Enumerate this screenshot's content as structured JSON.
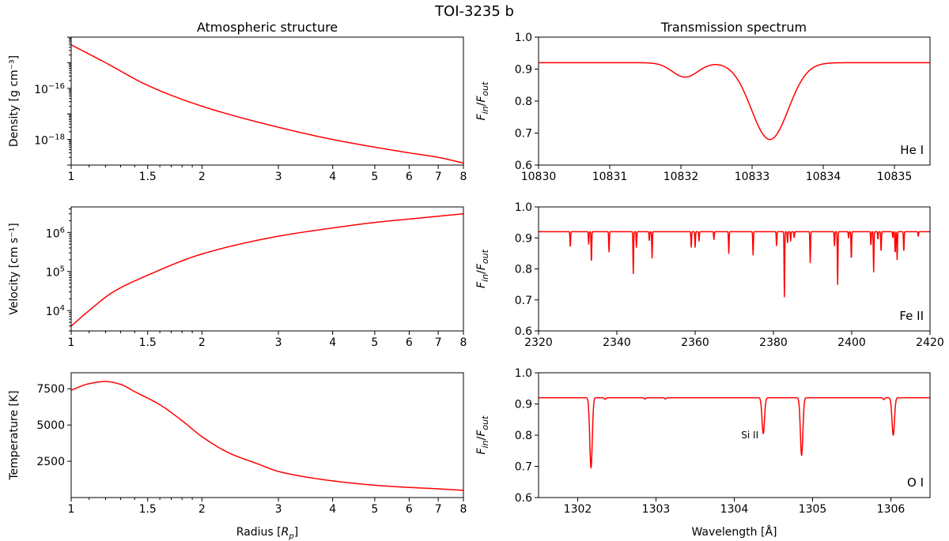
{
  "figure": {
    "title": "TOI-3235 b",
    "left_column_title": "Atmospheric structure",
    "right_column_title": "Transmission spectrum",
    "series_color": "#ff0000"
  },
  "chart_data": [
    {
      "id": "density",
      "type": "line",
      "title": "",
      "xlabel": "",
      "ylabel": "Density [g cm⁻³]",
      "xscale": "log",
      "yscale": "log",
      "xlim": [
        1,
        8
      ],
      "ylim": [
        1e-19,
        1e-14
      ],
      "xticks": [
        1,
        1.5,
        2,
        3,
        4,
        5,
        6,
        7,
        8
      ],
      "xtick_labels": [
        "1",
        "1.5",
        "2",
        "3",
        "4",
        "5",
        "6",
        "7",
        "8"
      ],
      "yticks": [
        1e-16,
        1e-18
      ],
      "ytick_base": "10",
      "ytick_exponents": [
        "−16",
        "−18"
      ],
      "x": [
        1.0,
        1.2,
        1.5,
        2.0,
        3.0,
        4.0,
        5.0,
        6.0,
        7.0,
        8.0
      ],
      "y": [
        5e-15,
        1e-15,
        1.3e-16,
        2e-17,
        3e-18,
        1e-18,
        5e-19,
        3e-19,
        2e-19,
        1.2e-19
      ]
    },
    {
      "id": "velocity",
      "type": "line",
      "title": "",
      "xlabel": "",
      "ylabel": "Velocity [cm s⁻¹]",
      "xscale": "log",
      "yscale": "log",
      "xlim": [
        1,
        8
      ],
      "ylim": [
        3000,
        4500000
      ],
      "xticks": [
        1,
        1.5,
        2,
        3,
        4,
        5,
        6,
        7,
        8
      ],
      "xtick_labels": [
        "1",
        "1.5",
        "2",
        "3",
        "4",
        "5",
        "6",
        "7",
        "8"
      ],
      "yticks": [
        10000,
        100000,
        1000000
      ],
      "ytick_base": "10",
      "ytick_exponents": [
        "4",
        "5",
        "6"
      ],
      "x": [
        1.0,
        1.1,
        1.25,
        1.5,
        2.0,
        3.0,
        4.0,
        5.0,
        6.0,
        7.0,
        8.0
      ],
      "y": [
        4000,
        10000,
        30000,
        80000,
        280000,
        800000,
        1300000,
        1800000,
        2200000,
        2600000,
        3000000
      ]
    },
    {
      "id": "temperature",
      "type": "line",
      "title": "",
      "xlabel": "Radius [Rp]",
      "ylabel": "Temperature [K]",
      "xscale": "log",
      "yscale": "linear",
      "xlim": [
        1,
        8
      ],
      "ylim": [
        0,
        8600
      ],
      "xticks": [
        1,
        1.5,
        2,
        3,
        4,
        5,
        6,
        7,
        8
      ],
      "xtick_labels": [
        "1",
        "1.5",
        "2",
        "3",
        "4",
        "5",
        "6",
        "7",
        "8"
      ],
      "yticks": [
        2500,
        5000,
        7500
      ],
      "ytick_labels": [
        "2500",
        "5000",
        "7500"
      ],
      "x": [
        1.0,
        1.1,
        1.2,
        1.3,
        1.4,
        1.6,
        1.8,
        2.0,
        2.3,
        2.7,
        3.0,
        3.5,
        4.0,
        5.0,
        6.0,
        7.0,
        8.0
      ],
      "y": [
        7400,
        7850,
        8000,
        7800,
        7300,
        6400,
        5300,
        4200,
        3100,
        2300,
        1800,
        1400,
        1150,
        850,
        700,
        600,
        500
      ]
    },
    {
      "id": "he-spectrum",
      "type": "line",
      "title": "",
      "xlabel": "",
      "ylabel": "Fin/Fout",
      "line_label": "He I",
      "xscale": "linear",
      "yscale": "linear",
      "xlim": [
        10830,
        10835.5
      ],
      "ylim": [
        0.6,
        1.0
      ],
      "xticks": [
        10830,
        10831,
        10832,
        10833,
        10834,
        10835
      ],
      "xtick_labels": [
        "10830",
        "10831",
        "10832",
        "10833",
        "10834",
        "10835"
      ],
      "yticks": [
        0.6,
        0.7,
        0.8,
        0.9,
        1.0
      ],
      "ytick_labels": [
        "0.6",
        "0.7",
        "0.8",
        "0.9",
        "1.0"
      ],
      "continuum": 0.92,
      "lines": [
        {
          "center": 10832.06,
          "depth": 0.045,
          "width": 0.18
        },
        {
          "center": 10833.25,
          "depth": 0.24,
          "width": 0.26
        }
      ]
    },
    {
      "id": "fe-spectrum",
      "type": "line",
      "title": "",
      "xlabel": "",
      "ylabel": "Fin/Fout",
      "line_label": "Fe II",
      "xscale": "linear",
      "yscale": "linear",
      "xlim": [
        2320,
        2420
      ],
      "ylim": [
        0.6,
        1.0
      ],
      "xticks": [
        2320,
        2340,
        2360,
        2380,
        2400,
        2420
      ],
      "xtick_labels": [
        "2320",
        "2340",
        "2360",
        "2380",
        "2400",
        "2420"
      ],
      "yticks": [
        0.6,
        0.7,
        0.8,
        0.9,
        1.0
      ],
      "ytick_labels": [
        "0.6",
        "0.7",
        "0.8",
        "0.9",
        "1.0"
      ],
      "continuum": 0.92,
      "lines": [
        {
          "center": 2328.1,
          "depth": 0.05,
          "width": 0.08
        },
        {
          "center": 2332.8,
          "depth": 0.04,
          "width": 0.08
        },
        {
          "center": 2333.5,
          "depth": 0.1,
          "width": 0.08
        },
        {
          "center": 2338.0,
          "depth": 0.065,
          "width": 0.08
        },
        {
          "center": 2344.2,
          "depth": 0.135,
          "width": 0.08
        },
        {
          "center": 2345.0,
          "depth": 0.05,
          "width": 0.08
        },
        {
          "center": 2348.3,
          "depth": 0.03,
          "width": 0.08
        },
        {
          "center": 2349.0,
          "depth": 0.085,
          "width": 0.08
        },
        {
          "center": 2359.0,
          "depth": 0.05,
          "width": 0.08
        },
        {
          "center": 2360.0,
          "depth": 0.05,
          "width": 0.08
        },
        {
          "center": 2361.0,
          "depth": 0.03,
          "width": 0.08
        },
        {
          "center": 2364.8,
          "depth": 0.025,
          "width": 0.08
        },
        {
          "center": 2368.6,
          "depth": 0.07,
          "width": 0.08
        },
        {
          "center": 2374.8,
          "depth": 0.075,
          "width": 0.08
        },
        {
          "center": 2380.8,
          "depth": 0.045,
          "width": 0.08
        },
        {
          "center": 2382.8,
          "depth": 0.21,
          "width": 0.08
        },
        {
          "center": 2383.6,
          "depth": 0.035,
          "width": 0.08
        },
        {
          "center": 2384.4,
          "depth": 0.03,
          "width": 0.08
        },
        {
          "center": 2385.3,
          "depth": 0.02,
          "width": 0.08
        },
        {
          "center": 2389.4,
          "depth": 0.1,
          "width": 0.08
        },
        {
          "center": 2395.6,
          "depth": 0.045,
          "width": 0.08
        },
        {
          "center": 2396.4,
          "depth": 0.17,
          "width": 0.08
        },
        {
          "center": 2399.2,
          "depth": 0.02,
          "width": 0.08
        },
        {
          "center": 2399.9,
          "depth": 0.09,
          "width": 0.08
        },
        {
          "center": 2404.9,
          "depth": 0.045,
          "width": 0.08
        },
        {
          "center": 2405.6,
          "depth": 0.13,
          "width": 0.08
        },
        {
          "center": 2406.7,
          "depth": 0.025,
          "width": 0.08
        },
        {
          "center": 2407.5,
          "depth": 0.065,
          "width": 0.08
        },
        {
          "center": 2410.5,
          "depth": 0.02,
          "width": 0.08
        },
        {
          "center": 2411.1,
          "depth": 0.07,
          "width": 0.08
        },
        {
          "center": 2411.6,
          "depth": 0.09,
          "width": 0.08
        },
        {
          "center": 2413.3,
          "depth": 0.065,
          "width": 0.08
        },
        {
          "center": 2417.0,
          "depth": 0.015,
          "width": 0.08
        }
      ]
    },
    {
      "id": "o-spectrum",
      "type": "line",
      "title": "",
      "xlabel": "Wavelength [Å]",
      "ylabel": "Fin/Fout",
      "line_label": "O I",
      "annotation": "Si II",
      "xscale": "linear",
      "yscale": "linear",
      "xlim": [
        1301.5,
        1306.5
      ],
      "ylim": [
        0.6,
        1.0
      ],
      "xticks": [
        1302,
        1303,
        1304,
        1305,
        1306
      ],
      "xtick_labels": [
        "1302",
        "1303",
        "1304",
        "1305",
        "1306"
      ],
      "yticks": [
        0.6,
        0.7,
        0.8,
        0.9,
        1.0
      ],
      "ytick_labels": [
        "0.6",
        "0.7",
        "0.8",
        "0.9",
        "1.0"
      ],
      "continuum": 0.92,
      "lines": [
        {
          "center": 1302.17,
          "depth": 0.225,
          "width": 0.016
        },
        {
          "center": 1302.35,
          "depth": 0.005,
          "width": 0.01
        },
        {
          "center": 1302.86,
          "depth": 0.004,
          "width": 0.01
        },
        {
          "center": 1303.12,
          "depth": 0.004,
          "width": 0.01
        },
        {
          "center": 1304.37,
          "depth": 0.115,
          "width": 0.016
        },
        {
          "center": 1304.86,
          "depth": 0.185,
          "width": 0.016
        },
        {
          "center": 1305.91,
          "depth": 0.006,
          "width": 0.01
        },
        {
          "center": 1306.03,
          "depth": 0.12,
          "width": 0.016
        }
      ]
    }
  ]
}
